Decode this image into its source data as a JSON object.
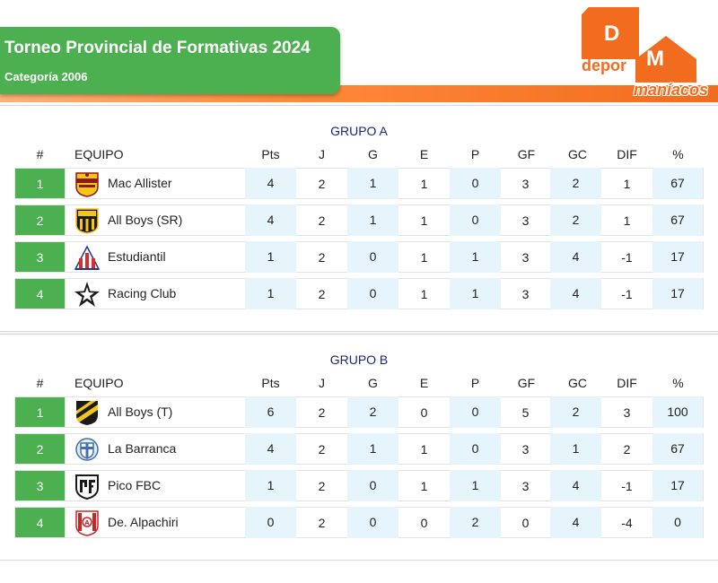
{
  "header": {
    "title": "Torneo Provincial de Formativas 2024",
    "subtitle": "Categoría 2006",
    "logo_text": {
      "d": "D",
      "depor": "depor",
      "m": "M",
      "maniacos": "maníacos"
    },
    "colors": {
      "accent_green": "#4caf50",
      "brand_orange": "#f26c1f",
      "group_title": "#1a237e",
      "stat_cell_blue": "#e6f4fb"
    }
  },
  "columns": [
    "#",
    "EQUIPO",
    "Pts",
    "J",
    "G",
    "E",
    "P",
    "GF",
    "GC",
    "DIF",
    "%"
  ],
  "groups": [
    {
      "title": "GRUPO A",
      "rows": [
        {
          "pos": "1",
          "team": "Mac Allister",
          "crest": "mac-allister-crest",
          "pts": "4",
          "j": "2",
          "g": "1",
          "e": "1",
          "p": "0",
          "gf": "3",
          "gc": "2",
          "dif": "1",
          "pct": "67"
        },
        {
          "pos": "2",
          "team": "All Boys (SR)",
          "crest": "all-boys-sr-crest",
          "pts": "4",
          "j": "2",
          "g": "1",
          "e": "1",
          "p": "0",
          "gf": "3",
          "gc": "2",
          "dif": "1",
          "pct": "67"
        },
        {
          "pos": "3",
          "team": "Estudiantil",
          "crest": "estudiantil-crest",
          "pts": "1",
          "j": "2",
          "g": "0",
          "e": "1",
          "p": "1",
          "gf": "3",
          "gc": "4",
          "dif": "-1",
          "pct": "17"
        },
        {
          "pos": "4",
          "team": "Racing Club",
          "crest": "racing-club-crest",
          "pts": "1",
          "j": "2",
          "g": "0",
          "e": "1",
          "p": "1",
          "gf": "3",
          "gc": "4",
          "dif": "-1",
          "pct": "17"
        }
      ]
    },
    {
      "title": "GRUPO B",
      "rows": [
        {
          "pos": "1",
          "team": "All Boys (T)",
          "crest": "all-boys-t-crest",
          "pts": "6",
          "j": "2",
          "g": "2",
          "e": "0",
          "p": "0",
          "gf": "5",
          "gc": "2",
          "dif": "3",
          "pct": "100"
        },
        {
          "pos": "2",
          "team": "La Barranca",
          "crest": "la-barranca-crest",
          "pts": "4",
          "j": "2",
          "g": "1",
          "e": "1",
          "p": "0",
          "gf": "3",
          "gc": "1",
          "dif": "2",
          "pct": "67"
        },
        {
          "pos": "3",
          "team": "Pico FBC",
          "crest": "pico-fbc-crest",
          "pts": "1",
          "j": "2",
          "g": "0",
          "e": "1",
          "p": "1",
          "gf": "3",
          "gc": "4",
          "dif": "-1",
          "pct": "17"
        },
        {
          "pos": "4",
          "team": "De. Alpachiri",
          "crest": "alpachiri-crest",
          "pts": "0",
          "j": "2",
          "g": "0",
          "e": "0",
          "p": "2",
          "gf": "0",
          "gc": "4",
          "dif": "-4",
          "pct": "0"
        }
      ]
    }
  ]
}
